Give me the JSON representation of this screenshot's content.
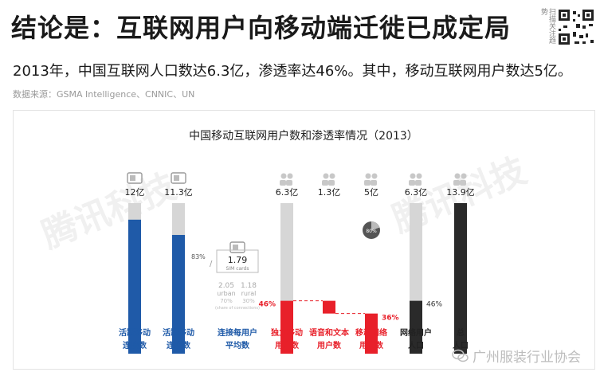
{
  "header": {
    "title": "结论是：互联网用户向移动端迁徙已成定局",
    "subtitle": "2013年，中国互联网人口数达6.3亿，渗透率达46%。其中，移动互联网用户数达5亿。",
    "source": "数据来源：GSMA Intelligence、CNNIC、UN",
    "qr_side_text": "扫描关注趋势"
  },
  "watermark_text": "腾讯科技",
  "footer": {
    "badge_text": "广州服装行业协会"
  },
  "colors": {
    "blue": "#1f5aa8",
    "red": "#e8202a",
    "dark": "#2a2a2a",
    "gray_bar": "#d6d6d6",
    "dashed": "#e8202a"
  },
  "chart_data": {
    "type": "bar",
    "title": "中国移动互联网用户数和渗透率情况（2013）",
    "unit": "亿",
    "groups": [
      {
        "id": "mobile-connections",
        "label_lines": [
          "活跃移动",
          "连接数"
        ],
        "value_label": "12亿",
        "total": 12,
        "fill_percent": 89,
        "fill_label": "89%",
        "color": "blue",
        "icon": "sim-card-icon"
      },
      {
        "id": "active-mobile-connections",
        "label_lines": [
          "活跃移动",
          "连接数"
        ],
        "value_label": "11.3亿",
        "total": 11.3,
        "fill_percent": 83,
        "fill_label": "83%",
        "color": "blue",
        "icon": "sim-card-icon"
      },
      {
        "id": "connections-per-user",
        "label_lines": [
          "连接每用户",
          "平均数"
        ],
        "value_label": "1.79",
        "value_sub": "SIM cards",
        "breakdown": [
          {
            "value": "2.05",
            "sub": "urban",
            "note": "70%"
          },
          {
            "value": "1.18",
            "sub": "rural",
            "note": "30%"
          }
        ],
        "breakdown_note": "(share of connections)",
        "icon": "sim-card-icon"
      },
      {
        "id": "unique-mobile-users",
        "label_lines": [
          "独立移动",
          "用户数"
        ],
        "value_label": "6.3亿",
        "total": 13.9,
        "value": 6.3,
        "fill_percent": 46,
        "fill_label": "46%",
        "color": "red",
        "icon": "users-icon"
      },
      {
        "id": "voice-sms-users",
        "label_lines": [
          "语音和文本",
          "用户数"
        ],
        "value_label": "1.3亿",
        "value": 1.3,
        "color": "red",
        "icon": "users-icon",
        "waterfall": true
      },
      {
        "id": "mobile-internet-users",
        "label_lines": [
          "移动网络",
          "用户数"
        ],
        "value_label": "5亿",
        "value": 5.0,
        "fill_percent": 36,
        "fill_label": "36%",
        "pie_label": "80%",
        "color": "red",
        "icon": "users-icon",
        "waterfall": true
      },
      {
        "id": "internet-users",
        "label_lines": [
          "网络用户",
          "人口"
        ],
        "value_label": "6.3亿",
        "total": 13.9,
        "value": 6.3,
        "fill_percent": 46,
        "fill_label": "46%",
        "color": "dark",
        "icon": "users-icon"
      },
      {
        "id": "population",
        "label_lines": [
          "总",
          "人口"
        ],
        "value_label": "13.9亿",
        "total": 13.9,
        "value": 13.9,
        "color": "dark",
        "icon": "users-icon"
      }
    ]
  }
}
